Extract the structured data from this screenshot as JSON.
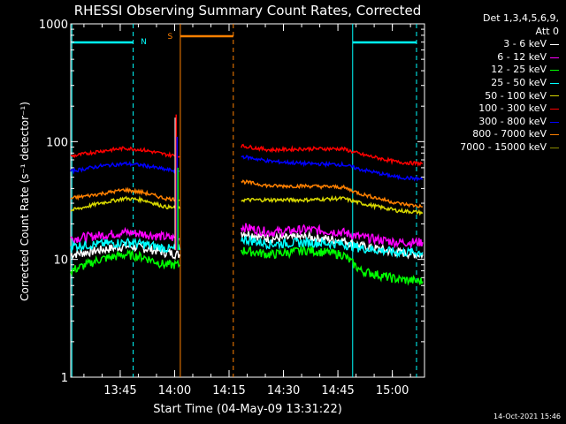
{
  "chart_data": {
    "type": "line",
    "title": "RHESSI Observing Summary Count Rates, Corrected",
    "xlabel": "Start Time (04-May-09 13:31:22)",
    "ylabel": "Corrected Count Rate (s⁻¹ detector⁻¹)",
    "yscale": "log",
    "ylim": [
      1,
      1000
    ],
    "xlim_minutes_from_start": [
      0,
      97.5
    ],
    "x_ticks": [
      "13:45",
      "14:00",
      "14:15",
      "14:30",
      "14:45",
      "15:00"
    ],
    "y_ticks": [
      "1",
      "10",
      "100",
      "1000"
    ],
    "legend_header": [
      "Det 1,3,4,5,6,9,",
      "Att 0"
    ],
    "legend_placement": "right",
    "series": [
      {
        "name": "3 - 6 keV",
        "color": "#ffffff",
        "segments": [
          [
            [
              0,
              11
            ],
            [
              8,
              12
            ],
            [
              15,
              13
            ],
            [
              20,
              12.5
            ],
            [
              26,
              11.5
            ],
            [
              30,
              11
            ]
          ],
          [
            [
              47,
              17
            ],
            [
              55,
              15
            ],
            [
              65,
              15.5
            ],
            [
              75,
              14.5
            ],
            [
              80,
              13
            ],
            [
              90,
              11.5
            ],
            [
              97,
              11
            ]
          ]
        ]
      },
      {
        "name": "6 - 12 keV",
        "color": "#ff00ff",
        "segments": [
          [
            [
              0,
              15
            ],
            [
              8,
              16
            ],
            [
              15,
              17
            ],
            [
              20,
              16.5
            ],
            [
              26,
              15.5
            ],
            [
              30,
              15
            ]
          ],
          [
            [
              47,
              19
            ],
            [
              55,
              17
            ],
            [
              65,
              18
            ],
            [
              75,
              17
            ],
            [
              80,
              15.5
            ],
            [
              90,
              14
            ],
            [
              97,
              14
            ]
          ]
        ]
      },
      {
        "name": "12 - 25 keV",
        "color": "#00ff00",
        "segments": [
          [
            [
              0,
              8
            ],
            [
              8,
              10
            ],
            [
              15,
              11
            ],
            [
              20,
              10.5
            ],
            [
              26,
              9
            ],
            [
              30,
              9
            ]
          ],
          [
            [
              47,
              12
            ],
            [
              55,
              11
            ],
            [
              65,
              12
            ],
            [
              75,
              11
            ],
            [
              80,
              8
            ],
            [
              90,
              6.8
            ],
            [
              97,
              6.5
            ]
          ]
        ]
      },
      {
        "name": "25 - 50 keV",
        "color": "#00ffff",
        "segments": [
          [
            [
              0,
              13
            ],
            [
              8,
              13.5
            ],
            [
              15,
              14
            ],
            [
              20,
              13.5
            ],
            [
              26,
              12.5
            ],
            [
              30,
              12
            ]
          ],
          [
            [
              47,
              15
            ],
            [
              55,
              13.5
            ],
            [
              65,
              14
            ],
            [
              75,
              13.5
            ],
            [
              80,
              12.5
            ],
            [
              90,
              11.5
            ],
            [
              97,
              11.5
            ]
          ]
        ]
      },
      {
        "name": "50 - 100 keV",
        "color": "#d8d800",
        "segments": [
          [
            [
              0,
              26
            ],
            [
              8,
              30
            ],
            [
              15,
              33
            ],
            [
              20,
              32
            ],
            [
              26,
              28
            ],
            [
              30,
              27
            ]
          ],
          [
            [
              47,
              32
            ],
            [
              55,
              32
            ],
            [
              65,
              32
            ],
            [
              75,
              33
            ],
            [
              80,
              30
            ],
            [
              90,
              26
            ],
            [
              97,
              25
            ]
          ]
        ]
      },
      {
        "name": "100 - 300 keV",
        "color": "#ff0000",
        "segments": [
          [
            [
              0,
              75
            ],
            [
              8,
              83
            ],
            [
              15,
              88
            ],
            [
              20,
              85
            ],
            [
              26,
              78
            ],
            [
              30,
              75
            ]
          ],
          [
            [
              47,
              92
            ],
            [
              55,
              85
            ],
            [
              65,
              87
            ],
            [
              75,
              87
            ],
            [
              80,
              78
            ],
            [
              90,
              67
            ],
            [
              97,
              65
            ]
          ]
        ]
      },
      {
        "name": "300 - 800 keV",
        "color": "#0000ff",
        "segments": [
          [
            [
              0,
              56
            ],
            [
              8,
              62
            ],
            [
              15,
              65
            ],
            [
              20,
              63
            ],
            [
              26,
              58
            ],
            [
              30,
              56
            ]
          ],
          [
            [
              47,
              75
            ],
            [
              55,
              68
            ],
            [
              65,
              65
            ],
            [
              75,
              64
            ],
            [
              80,
              58
            ],
            [
              90,
              50
            ],
            [
              97,
              48
            ]
          ]
        ]
      },
      {
        "name": "800 - 7000 keV",
        "color": "#ff8000",
        "segments": [
          [
            [
              0,
              33
            ],
            [
              8,
              36
            ],
            [
              15,
              39
            ],
            [
              20,
              37
            ],
            [
              26,
              33
            ],
            [
              30,
              32
            ]
          ],
          [
            [
              47,
              46
            ],
            [
              55,
              42
            ],
            [
              65,
              42
            ],
            [
              75,
              41
            ],
            [
              80,
              36
            ],
            [
              90,
              30
            ],
            [
              97,
              28
            ]
          ]
        ]
      },
      {
        "name": "7000 - 15000 keV",
        "color": "#8a8a00",
        "segments": []
      }
    ],
    "annotations": [
      {
        "text": "N",
        "color": "#00ffff"
      },
      {
        "text": "S",
        "color": "#ff8000"
      }
    ]
  },
  "footer_timestamp": "14-Oct-2021 15:46"
}
